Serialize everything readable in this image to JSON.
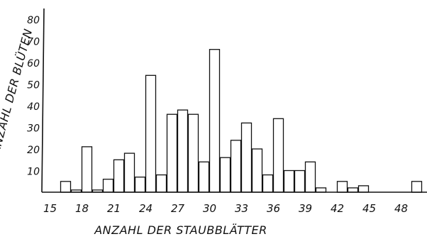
{
  "chart_data": {
    "type": "bar",
    "xlabel": "ANZAHL DER STAUBBLÄTTER",
    "ylabel": "ANZAHL DER BLÜTEN",
    "xlim": [
      15,
      49
    ],
    "ylim": [
      0,
      80
    ],
    "x_ticks": [
      15,
      18,
      21,
      24,
      27,
      30,
      33,
      36,
      39,
      42,
      45,
      48
    ],
    "y_ticks": [
      10,
      20,
      30,
      40,
      50,
      60,
      70,
      80
    ],
    "grid": false,
    "data": [
      {
        "x": 16,
        "y": 5
      },
      {
        "x": 17,
        "y": 1
      },
      {
        "x": 18,
        "y": 21
      },
      {
        "x": 19,
        "y": 1
      },
      {
        "x": 20,
        "y": 6
      },
      {
        "x": 21,
        "y": 15
      },
      {
        "x": 22,
        "y": 18
      },
      {
        "x": 23,
        "y": 7
      },
      {
        "x": 24,
        "y": 54
      },
      {
        "x": 25,
        "y": 8
      },
      {
        "x": 26,
        "y": 36
      },
      {
        "x": 27,
        "y": 38
      },
      {
        "x": 28,
        "y": 36
      },
      {
        "x": 29,
        "y": 14
      },
      {
        "x": 30,
        "y": 66
      },
      {
        "x": 31,
        "y": 16
      },
      {
        "x": 32,
        "y": 24
      },
      {
        "x": 33,
        "y": 32
      },
      {
        "x": 34,
        "y": 20
      },
      {
        "x": 35,
        "y": 8
      },
      {
        "x": 36,
        "y": 34
      },
      {
        "x": 37,
        "y": 10
      },
      {
        "x": 38,
        "y": 10
      },
      {
        "x": 39,
        "y": 14
      },
      {
        "x": 40,
        "y": 2
      },
      {
        "x": 42,
        "y": 5
      },
      {
        "x": 43,
        "y": 2
      },
      {
        "x": 44,
        "y": 3
      },
      {
        "x": 49,
        "y": 5
      }
    ]
  }
}
